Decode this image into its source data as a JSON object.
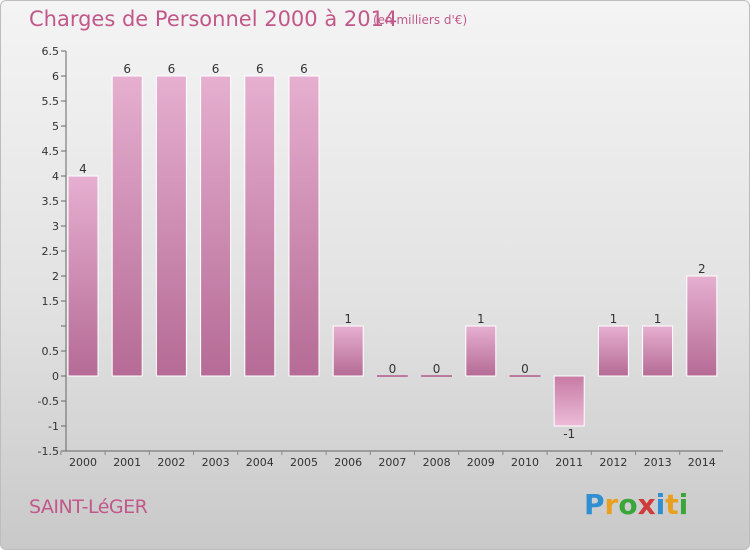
{
  "header": {
    "title": "Charges de Personnel 2000 à 2014",
    "subtitle": "(en milliers d'€)"
  },
  "footer": {
    "commune": "SAINT-LéGER",
    "logo_letters": [
      {
        "ch": "P",
        "color": "#2f8fd0"
      },
      {
        "ch": "r",
        "color": "#e8a020"
      },
      {
        "ch": "o",
        "color": "#3aa63a"
      },
      {
        "ch": "x",
        "color": "#d03a3a"
      },
      {
        "ch": "i",
        "color": "#2f8fd0"
      },
      {
        "ch": "t",
        "color": "#e8a020"
      },
      {
        "ch": "i",
        "color": "#3aa63a"
      }
    ]
  },
  "chart_data": {
    "type": "bar",
    "title": "Charges de Personnel 2000 à 2014",
    "subtitle": "(en milliers d'€)",
    "xlabel": "",
    "ylabel": "",
    "categories": [
      "2000",
      "2001",
      "2002",
      "2003",
      "2004",
      "2005",
      "2006",
      "2007",
      "2008",
      "2009",
      "2010",
      "2011",
      "2012",
      "2013",
      "2014"
    ],
    "values": [
      4,
      6,
      6,
      6,
      6,
      6,
      1,
      0,
      0,
      1,
      0,
      -1,
      1,
      1,
      2
    ],
    "data_labels": [
      "4",
      "6",
      "6",
      "6",
      "6",
      "6",
      "1",
      "0",
      "0",
      "1",
      "0",
      "-1",
      "1",
      "1",
      "2"
    ],
    "ylim": [
      -1.5,
      6.5
    ],
    "y_ticks": [
      {
        "v": 6.5,
        "label": "6.5"
      },
      {
        "v": 6,
        "label": "6"
      },
      {
        "v": 5.5,
        "label": "5.5"
      },
      {
        "v": 5,
        "label": "5"
      },
      {
        "v": 4.5,
        "label": "4.5"
      },
      {
        "v": 4,
        "label": "4"
      },
      {
        "v": 3.5,
        "label": "3.5"
      },
      {
        "v": 3,
        "label": "3"
      },
      {
        "v": 2.5,
        "label": "2.5"
      },
      {
        "v": 2,
        "label": "2"
      },
      {
        "v": 1.5,
        "label": "1.5"
      },
      {
        "v": 1,
        "label": ""
      },
      {
        "v": 0.5,
        "label": "0.5"
      },
      {
        "v": 0,
        "label": "0"
      },
      {
        "v": -0.5,
        "label": "-0.5"
      },
      {
        "v": -1,
        "label": "-1"
      },
      {
        "v": -1.5,
        "label": "-1.5"
      }
    ],
    "grid": false,
    "bar_color": "#d68fb8",
    "bar_color_dark": "#b8648f"
  }
}
